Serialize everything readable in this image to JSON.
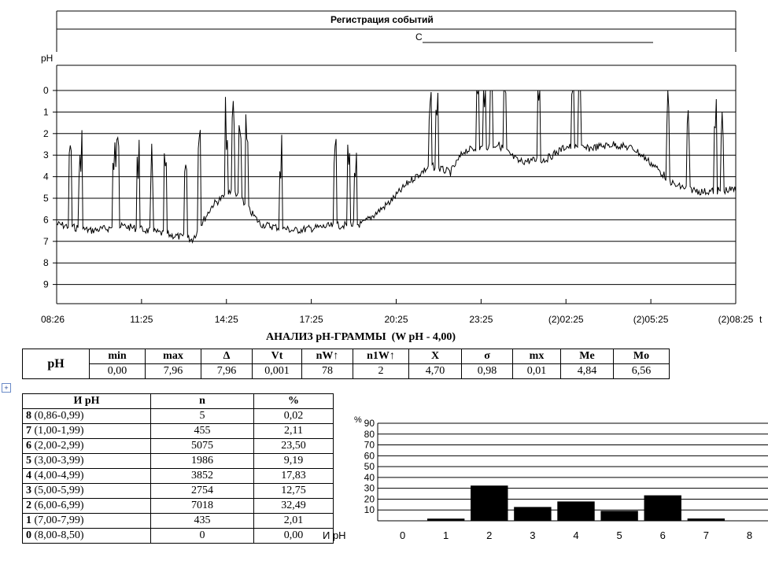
{
  "header": {
    "title": "Регистрация событий",
    "marker": "С"
  },
  "main_chart": {
    "y_unit": "pH",
    "time_unit_suffix": "t",
    "y_ticks": [
      "0",
      "1",
      "2",
      "3",
      "4",
      "5",
      "6",
      "7",
      "8",
      "9"
    ],
    "x_ticks": [
      "08:26",
      "11:25",
      "14:25",
      "17:25",
      "20:25",
      "23:25",
      "(2)02:25",
      "(2)05:25",
      "(2)08:25"
    ]
  },
  "analysis": {
    "title": "АНАЛИЗ рН-ГРАММЫ  (W рН - 4,00)",
    "row_label": "рН",
    "headers": [
      "min",
      "max",
      "Δ",
      "Vt",
      "nW↑",
      "n1W↑",
      "X",
      "σ",
      "mx",
      "Me",
      "Mo"
    ],
    "values": [
      "0,00",
      "7,96",
      "7,96",
      "0,001",
      "78",
      "2",
      "4,70",
      "0,98",
      "0,01",
      "4,84",
      "6,56"
    ]
  },
  "ph_table": {
    "headers": [
      "И рН",
      "n",
      "%"
    ],
    "rows": [
      {
        "idx": "8",
        "range": "(0,86-0,99)",
        "n": "5",
        "pct": "0,02"
      },
      {
        "idx": "7",
        "range": "(1,00-1,99)",
        "n": "455",
        "pct": "2,11"
      },
      {
        "idx": "6",
        "range": "(2,00-2,99)",
        "n": "5075",
        "pct": "23,50"
      },
      {
        "idx": "5",
        "range": "(3,00-3,99)",
        "n": "1986",
        "pct": "9,19"
      },
      {
        "idx": "4",
        "range": "(4,00-4,99)",
        "n": "3852",
        "pct": "17,83"
      },
      {
        "idx": "3",
        "range": "(5,00-5,99)",
        "n": "2754",
        "pct": "12,75"
      },
      {
        "idx": "2",
        "range": "(6,00-6,99)",
        "n": "7018",
        "pct": "32,49"
      },
      {
        "idx": "1",
        "range": "(7,00-7,99)",
        "n": "435",
        "pct": "2,01"
      },
      {
        "idx": "0",
        "range": "(8,00-8,50)",
        "n": "0",
        "pct": "0,00"
      }
    ]
  },
  "chart_data": {
    "type": "bar",
    "ylabel": "%",
    "xlabel": "И рН",
    "categories": [
      "0",
      "1",
      "2",
      "3",
      "4",
      "5",
      "6",
      "7",
      "8"
    ],
    "values": [
      0.0,
      2.01,
      32.49,
      12.75,
      17.83,
      9.19,
      23.5,
      2.11,
      0.02
    ],
    "ylim": [
      0,
      90
    ],
    "y_ticks": [
      "90",
      "80",
      "70",
      "60",
      "50",
      "40",
      "30",
      "20",
      "10"
    ],
    "grid": true
  }
}
